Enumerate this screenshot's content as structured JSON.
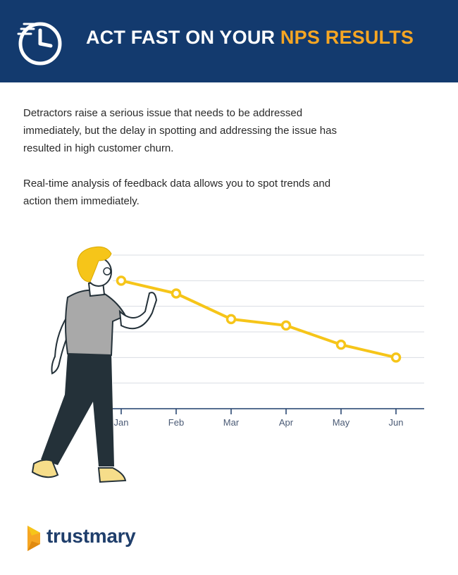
{
  "header": {
    "title_part1": "ACT FAST ON YOUR ",
    "title_part2": "NPS RESULTS",
    "icon": "clock-icon",
    "background_color": "#133a6e",
    "accent_color": "#f6a623"
  },
  "body": {
    "paragraph1": "Detractors raise a serious issue that needs to be addressed immediately, but the delay in spotting and addressing the issue has resulted in high customer churn.",
    "paragraph2": "Real-time analysis of feedback data allows you to spot trends and action them immediately."
  },
  "chart_data": {
    "type": "line",
    "categories": [
      "Jan",
      "Feb",
      "Mar",
      "Apr",
      "May",
      "Jun"
    ],
    "values": [
      5.0,
      4.5,
      3.5,
      3.25,
      2.5,
      2.0
    ],
    "ylim": [
      0,
      6
    ],
    "grid": true,
    "line_color": "#f6c519",
    "title": "",
    "xlabel": "",
    "ylabel": ""
  },
  "footer": {
    "brand": "trustmary",
    "icon": "trustmary-logo-icon"
  }
}
